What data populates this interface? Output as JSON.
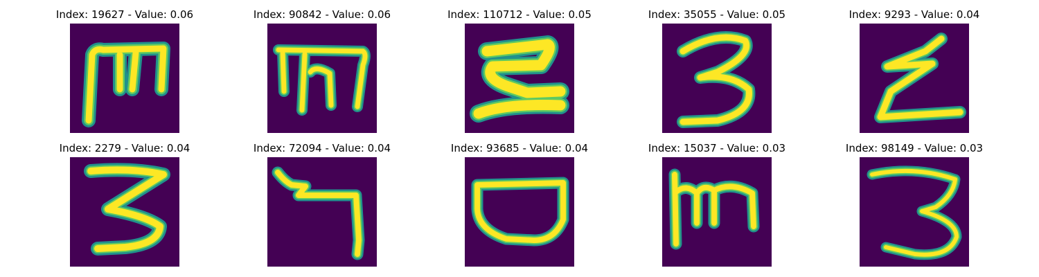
{
  "figure": {
    "colors": {
      "background": "#440154",
      "stroke_edge": "#21918c",
      "stroke_mid": "#5ec962",
      "stroke_core": "#fde725"
    },
    "panels": [
      {
        "title": "Index: 19627 - Value: 0.06",
        "glyph": "handwritten-m-shape"
      },
      {
        "title": "Index: 90842 - Value: 0.06",
        "glyph": "handwritten-m-shape"
      },
      {
        "title": "Index: 110712 - Value: 0.05",
        "glyph": "handwritten-2-shape"
      },
      {
        "title": "Index: 35055 - Value: 0.05",
        "glyph": "handwritten-3"
      },
      {
        "title": "Index: 9293 - Value: 0.04",
        "glyph": "handwritten-z-shape"
      },
      {
        "title": "Index: 2279 - Value: 0.04",
        "glyph": "handwritten-3"
      },
      {
        "title": "Index: 72094 - Value: 0.04",
        "glyph": "handwritten-7-shape"
      },
      {
        "title": "Index: 93685 - Value: 0.04",
        "glyph": "handwritten-d-shape"
      },
      {
        "title": "Index: 15037 - Value: 0.03",
        "glyph": "handwritten-m-shape"
      },
      {
        "title": "Index: 98149 - Value: 0.03",
        "glyph": "handwritten-3"
      }
    ]
  }
}
